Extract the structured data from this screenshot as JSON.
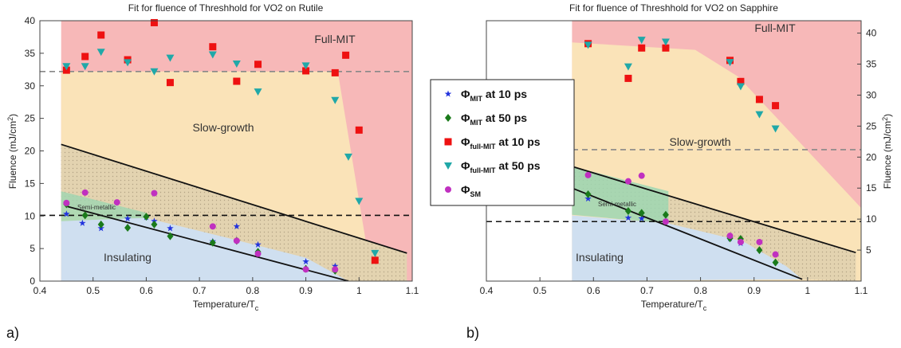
{
  "panel_labels": [
    "a)",
    "b)"
  ],
  "legend": [
    {
      "symbol": "Φ",
      "sub": "MIT",
      "text": " at 10 ps",
      "marker": "star",
      "color": "#2233dd"
    },
    {
      "symbol": "Φ",
      "sub": "MIT",
      "text": " at 50 ps",
      "marker": "diamond",
      "color": "#1a7a1a"
    },
    {
      "symbol": "Φ",
      "sub": "full-MIT",
      "text": " at 10 ps",
      "marker": "square",
      "color": "#ee1111"
    },
    {
      "symbol": "Φ",
      "sub": "full-MIT",
      "text": " at 50 ps",
      "marker": "triangle",
      "color": "#20a8a8"
    },
    {
      "symbol": "Φ",
      "sub": "SM",
      "text": "",
      "marker": "circle",
      "color": "#c030c0"
    }
  ],
  "colors": {
    "full_mit": "#f7b8b8",
    "slow_growth": "#fae3b8",
    "semi_metallic": "#9ed6b2",
    "insulating": "#cfdff0",
    "hatched_band": "#e3d3b0"
  },
  "chart_data": [
    {
      "type": "scatter",
      "title": "Fit for fluence of Threshhold for VO2 on Rutile",
      "xlabel": "Temperature/T",
      "xlabel_sub": "c",
      "ylabel": "Fluence (mJ/cm",
      "ylabel_sup": "2",
      "ylabel_end": ")",
      "xlim": [
        0.4,
        1.1
      ],
      "ylim": [
        0,
        40
      ],
      "xticks": [
        0.4,
        0.5,
        0.6,
        0.7,
        0.8,
        0.9,
        1.0,
        1.1
      ],
      "xtick_labels": [
        "0.4",
        "0.5",
        "0.6",
        "0.7",
        "0.8",
        "0.9",
        "1",
        "1.1"
      ],
      "yticks": [
        0,
        5,
        10,
        15,
        20,
        25,
        30,
        35,
        40
      ],
      "yaxis_side": "left",
      "regions": {
        "full_mit": "Full-MIT",
        "slow_growth": "Slow-growth",
        "semi_metallic": "Semi-metallic",
        "insulating": "Insulating"
      },
      "dashed_lines": [
        {
          "y": 32.2,
          "color": "#888888"
        },
        {
          "y": 10.1,
          "color": "#111111"
        }
      ],
      "fit_lines": [
        {
          "x": [
            0.44,
            1.09
          ],
          "y": [
            21.0,
            4.3
          ]
        },
        {
          "x": [
            0.45,
            0.98
          ],
          "y": [
            11.5,
            0.0
          ]
        }
      ],
      "series": [
        {
          "name": "ΦMIT at 10 ps",
          "marker": "star",
          "x": [
            0.45,
            0.48,
            0.515,
            0.565,
            0.6,
            0.615,
            0.645,
            0.725,
            0.77,
            0.81,
            0.9,
            0.955
          ],
          "y": [
            10.3,
            8.9,
            8.1,
            9.6,
            9.8,
            9.2,
            8.1,
            6.1,
            8.4,
            5.6,
            3.0,
            2.3
          ]
        },
        {
          "name": "ΦMIT at 50 ps",
          "marker": "diamond",
          "x": [
            0.45,
            0.485,
            0.515,
            0.565,
            0.6,
            0.615,
            0.645,
            0.725,
            0.77,
            0.81,
            0.9,
            0.955
          ],
          "y": [
            11.8,
            10.1,
            8.7,
            8.2,
            9.9,
            8.7,
            6.9,
            5.9,
            6.2,
            4.5,
            1.9,
            1.6
          ]
        },
        {
          "name": "Φfull-MIT at 10 ps",
          "marker": "square",
          "x": [
            0.45,
            0.485,
            0.515,
            0.565,
            0.615,
            0.645,
            0.725,
            0.77,
            0.81,
            0.9,
            0.955,
            0.975,
            1.0,
            1.03
          ],
          "y": [
            32.4,
            34.5,
            37.8,
            34.0,
            39.7,
            30.5,
            36.0,
            30.7,
            33.3,
            32.3,
            32.0,
            34.7,
            23.2,
            3.2
          ]
        },
        {
          "name": "Φfull-MIT at 50 ps",
          "marker": "triangle",
          "x": [
            0.45,
            0.485,
            0.515,
            0.565,
            0.615,
            0.645,
            0.725,
            0.77,
            0.81,
            0.9,
            0.955,
            0.98,
            1.0,
            1.03
          ],
          "y": [
            33.0,
            33.0,
            35.2,
            33.6,
            32.2,
            34.3,
            34.8,
            33.4,
            29.1,
            33.1,
            27.8,
            19.1,
            12.3,
            4.3
          ]
        },
        {
          "name": "ΦSM",
          "marker": "circle",
          "x": [
            0.45,
            0.485,
            0.545,
            0.615,
            0.725,
            0.77,
            0.81,
            0.9,
            0.955
          ],
          "y": [
            12.0,
            13.6,
            12.1,
            13.5,
            8.4,
            6.2,
            4.2,
            1.8,
            1.8
          ]
        }
      ]
    },
    {
      "type": "scatter",
      "title": "Fit for fluence of Threshhold for VO2 on Sapphire",
      "xlabel": "Temperature/T",
      "xlabel_sub": "c",
      "ylabel": "Fluence (mJ/cm",
      "ylabel_sup": "2",
      "ylabel_end": ")",
      "xlim": [
        0.4,
        1.1
      ],
      "ylim": [
        0,
        42
      ],
      "xticks": [
        0.4,
        0.5,
        0.6,
        0.7,
        0.8,
        0.9,
        1.0,
        1.1
      ],
      "xtick_labels": [
        "0.4",
        "0.5",
        "0.6",
        "0.7",
        "0.8",
        "0.9",
        "1",
        "1.1"
      ],
      "yticks": [
        5,
        10,
        15,
        20,
        25,
        30,
        35,
        40
      ],
      "yaxis_side": "right",
      "regions": {
        "full_mit": "Full-MIT",
        "slow_growth": "Slow-growth",
        "semi_metallic": "Semi-metallic",
        "insulating": "Insulating"
      },
      "dashed_lines": [
        {
          "y": 21.2,
          "color": "#888888"
        },
        {
          "y": 9.6,
          "color": "#111111"
        }
      ],
      "fit_lines": [
        {
          "x": [
            0.56,
            1.09
          ],
          "y": [
            18.5,
            4.6
          ]
        },
        {
          "x": [
            0.56,
            0.99
          ],
          "y": [
            15.0,
            0.3
          ]
        }
      ],
      "series": [
        {
          "name": "ΦMIT at 10 ps",
          "marker": "star",
          "x": [
            0.59,
            0.665,
            0.69,
            0.855,
            0.875
          ],
          "y": [
            13.3,
            10.2,
            10.1,
            6.9,
            6.1
          ]
        },
        {
          "name": "ΦMIT at 50 ps",
          "marker": "diamond",
          "x": [
            0.59,
            0.665,
            0.69,
            0.735,
            0.855,
            0.875,
            0.91,
            0.94
          ],
          "y": [
            14.0,
            11.3,
            11.0,
            10.7,
            6.9,
            6.8,
            5.0,
            3.0
          ]
        },
        {
          "name": "Φfull-MIT at 10 ps",
          "marker": "square",
          "x": [
            0.59,
            0.665,
            0.69,
            0.735,
            0.855,
            0.875,
            0.91,
            0.94
          ],
          "y": [
            38.3,
            32.7,
            37.6,
            37.6,
            35.6,
            32.2,
            29.3,
            28.3
          ]
        },
        {
          "name": "Φfull-MIT at 50 ps",
          "marker": "triangle",
          "x": [
            0.59,
            0.665,
            0.69,
            0.735,
            0.855,
            0.875,
            0.91,
            0.94
          ],
          "y": [
            38.1,
            34.6,
            38.9,
            38.6,
            35.3,
            31.4,
            26.9,
            24.6
          ]
        },
        {
          "name": "ΦSM",
          "marker": "circle",
          "x": [
            0.59,
            0.665,
            0.69,
            0.735,
            0.855,
            0.875,
            0.91,
            0.94
          ],
          "y": [
            17.1,
            16.1,
            17.0,
            9.6,
            7.3,
            6.3,
            6.3,
            4.3
          ]
        }
      ]
    }
  ]
}
